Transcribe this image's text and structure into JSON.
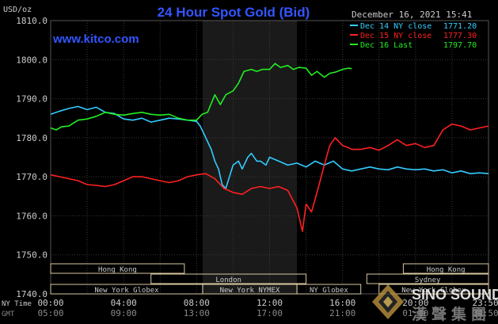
{
  "header": {
    "unit": "USD/oz",
    "title": "24 Hour Spot Gold (Bid)",
    "datetime": "December 16, 2021 15:41",
    "website": "www.kitco.com"
  },
  "legend": [
    {
      "label": "Dec 14 NY close",
      "value": "1771.20",
      "color": "#33ccff"
    },
    {
      "label": "Dec 15 NY close",
      "value": "1777.30",
      "color": "#ff2020"
    },
    {
      "label": "Dec 16 Last",
      "value": "1797.70",
      "color": "#22ee22"
    }
  ],
  "watermark": {
    "brand": "SINO SOUND",
    "chinese": "漢聲集團"
  },
  "colors": {
    "background": "#000000",
    "grid": "#3a3a3a",
    "ny_session_shade": "#1a1a1a",
    "title": "#3355ff",
    "axis_text": "#cccccc",
    "market_box": "#d8c8a0",
    "market_text": "#000000"
  },
  "markets": [
    {
      "label": "Hong Kong",
      "start": 0,
      "end": 7.33
    },
    {
      "label": "London",
      "start": 5.5,
      "end": 14
    },
    {
      "label": "New York Globex",
      "start": 0,
      "end": 8.33
    },
    {
      "label": "New York NYMEX",
      "start": 8.33,
      "end": 13.5
    },
    {
      "label": "NY Globex",
      "start": 13.5,
      "end": 17
    },
    {
      "label": "Hong Kong",
      "start": 19.33,
      "end": 24
    },
    {
      "label": "Sydney",
      "start": 17.33,
      "end": 24
    },
    {
      "label": "New York Globex",
      "start": 18,
      "end": 24
    }
  ],
  "time_rows": {
    "ny_label": "NY Time",
    "gmt_label": "GMT"
  },
  "chart_data": {
    "type": "line",
    "title": "24 Hour Spot Gold (Bid)",
    "ylabel": "USD/oz",
    "xlim": [
      0,
      24
    ],
    "ylim": [
      1740,
      1810
    ],
    "yticks": [
      "1740.0",
      "1750.0",
      "1760.0",
      "1770.0",
      "1780.0",
      "1790.0",
      "1800.0",
      "1810.0"
    ],
    "xticks_ny": [
      "00:00",
      "04:00",
      "08:00",
      "12:00",
      "16:00",
      "20:00",
      "23:50"
    ],
    "xticks_gmt": [
      "05:00",
      "09:00",
      "13:00",
      "17:00",
      "21:00",
      "01:00",
      "04:50"
    ],
    "xtick_hours": [
      0,
      4,
      8,
      12,
      16,
      20,
      23.83
    ],
    "ny_session_hours": [
      8.33,
      13.5
    ],
    "grid": true,
    "legend_position": "top-right",
    "series": [
      {
        "name": "Dec 14 NY close",
        "color": "#33ccff",
        "x": [
          0,
          0.5,
          1,
          1.5,
          2,
          2.5,
          3,
          3.5,
          4,
          4.5,
          5,
          5.5,
          6,
          6.5,
          7,
          7.5,
          8,
          8.2,
          8.5,
          8.8,
          9,
          9.2,
          9.4,
          9.6,
          9.8,
          10,
          10.3,
          10.5,
          10.8,
          11,
          11.3,
          11.5,
          11.8,
          12,
          12.5,
          13,
          13.5,
          14,
          14.5,
          15,
          15.5,
          16,
          16.5,
          17,
          17.5,
          18,
          18.5,
          19,
          19.5,
          20,
          20.5,
          21,
          21.5,
          22,
          22.5,
          23,
          23.5,
          24
        ],
        "y": [
          1786,
          1786.8,
          1787.5,
          1788,
          1787.2,
          1787.8,
          1786.5,
          1786.2,
          1784.8,
          1784.5,
          1785,
          1784,
          1784.5,
          1785,
          1784.8,
          1784.5,
          1784.2,
          1783,
          1780,
          1777,
          1774,
          1772,
          1768,
          1767,
          1770,
          1773,
          1774,
          1772,
          1775,
          1776,
          1774,
          1774,
          1773,
          1775,
          1774,
          1773,
          1773.5,
          1772.5,
          1774,
          1773,
          1774,
          1772,
          1771.5,
          1772,
          1772.5,
          1772,
          1771.8,
          1772.5,
          1772,
          1771.8,
          1772,
          1771.5,
          1771.8,
          1771,
          1771.5,
          1770.8,
          1771,
          1770.8
        ]
      },
      {
        "name": "Dec 15 NY close",
        "color": "#ff2020",
        "x": [
          0,
          0.5,
          1,
          1.5,
          2,
          2.5,
          3,
          3.5,
          4,
          4.5,
          5,
          5.5,
          6,
          6.5,
          7,
          7.5,
          8,
          8.5,
          9,
          9.5,
          10,
          10.5,
          11,
          11.5,
          12,
          12.5,
          13,
          13.5,
          13.8,
          14,
          14.3,
          14.6,
          15,
          15.3,
          15.6,
          16,
          16.3,
          16.5,
          17,
          17.5,
          18,
          18.5,
          19,
          19.5,
          20,
          20.5,
          21,
          21.5,
          22,
          22.5,
          23,
          23.5,
          24
        ],
        "y": [
          1770.5,
          1770,
          1769.5,
          1769,
          1768,
          1767.8,
          1767.5,
          1768,
          1769,
          1770,
          1770,
          1769.5,
          1769,
          1768.5,
          1769,
          1770,
          1770.5,
          1770.8,
          1769.5,
          1767,
          1766,
          1765.5,
          1767,
          1767.5,
          1767,
          1767.5,
          1766.5,
          1762,
          1756,
          1763,
          1761,
          1766,
          1773,
          1778,
          1780,
          1778,
          1777.5,
          1777,
          1777,
          1777.5,
          1776.8,
          1778,
          1779.5,
          1778,
          1778.5,
          1777.5,
          1778,
          1782,
          1783.5,
          1783,
          1782,
          1782.5,
          1783
        ]
      },
      {
        "name": "Dec 16 Last",
        "color": "#22ee22",
        "x": [
          0,
          0.3,
          0.6,
          1,
          1.5,
          2,
          2.5,
          3,
          3.5,
          4,
          4.5,
          5,
          5.5,
          6,
          6.5,
          7,
          7.5,
          8,
          8.3,
          8.6,
          9,
          9.3,
          9.6,
          10,
          10.3,
          10.6,
          11,
          11.3,
          11.6,
          12,
          12.3,
          12.6,
          13,
          13.3,
          13.6,
          14,
          14.3,
          14.6,
          15,
          15.3,
          15.6,
          16,
          16.3,
          16.5
        ],
        "y": [
          1782.5,
          1782,
          1782.8,
          1783,
          1784.5,
          1784.8,
          1785.5,
          1786.5,
          1786,
          1785.8,
          1786.2,
          1786.5,
          1786,
          1785.8,
          1786,
          1785,
          1784.5,
          1784.5,
          1786,
          1786.5,
          1791,
          1788.5,
          1791,
          1792,
          1794,
          1797,
          1797.5,
          1797,
          1797.5,
          1797.5,
          1799,
          1798,
          1798.5,
          1797.5,
          1798,
          1797.8,
          1796,
          1797,
          1795.5,
          1796.5,
          1796.8,
          1797.5,
          1797.8,
          1797.7
        ]
      }
    ]
  }
}
